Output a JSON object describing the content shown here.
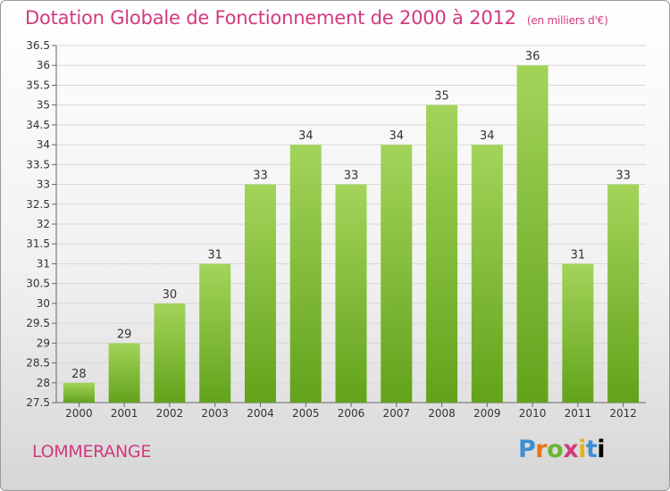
{
  "header": {
    "title": "Dotation Globale de Fonctionnement de 2000 à 2012",
    "unit": "(en milliers d'€)"
  },
  "commune": "LOMMERANGE",
  "logo": {
    "letters": [
      "P",
      "r",
      "o",
      "x",
      "i",
      "t",
      "i"
    ]
  },
  "colors": {
    "title": "#d23a7e",
    "bar_light": "#a3d45a",
    "bar_dark": "#62a31b",
    "grid": "#d8d8d8"
  },
  "chart_data": {
    "type": "bar",
    "title": "Dotation Globale de Fonctionnement de 2000 à 2012",
    "subtitle": "(en milliers d'€)",
    "categories": [
      "2000",
      "2001",
      "2002",
      "2003",
      "2004",
      "2005",
      "2006",
      "2007",
      "2008",
      "2009",
      "2010",
      "2011",
      "2012"
    ],
    "values": [
      28,
      29,
      30,
      31,
      33,
      34,
      33,
      34,
      35,
      34,
      36,
      31,
      33
    ],
    "ylim": [
      27.5,
      36.5
    ],
    "yticks": [
      "27.5",
      "28",
      "28.5",
      "29",
      "29.5",
      "30",
      "30.5",
      "31",
      "31.5",
      "32",
      "32.5",
      "33",
      "33.5",
      "34",
      "34.5",
      "35",
      "35.5",
      "36",
      "36.5"
    ],
    "grid": true,
    "data_labels": true
  }
}
